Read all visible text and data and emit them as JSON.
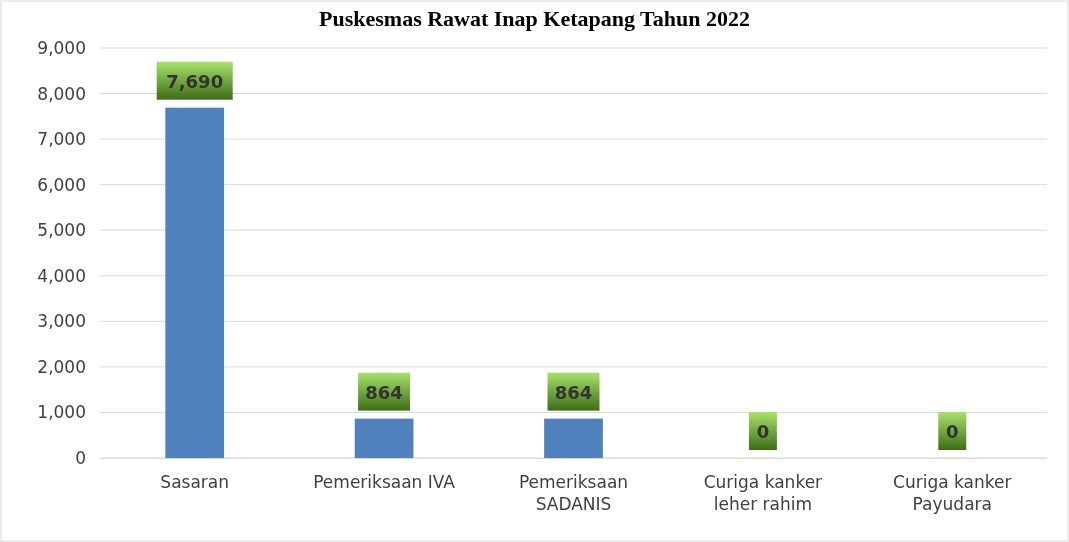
{
  "chart_data": {
    "type": "bar",
    "title": "Puskesmas Rawat Inap Ketapang Tahun 2022",
    "categories": [
      "Sasaran",
      "Pemeriksaan IVA",
      "Pemeriksaan SADANIS",
      "Curiga kanker leher rahim",
      "Curiga kanker Payudara"
    ],
    "values": [
      7690,
      864,
      864,
      0,
      0
    ],
    "color": "#4f81bd",
    "ylim": [
      0,
      9000
    ],
    "yticks": [
      {
        "value": 0,
        "label": "0"
      },
      {
        "value": 1000,
        "label": "1,000"
      },
      {
        "value": 2000,
        "label": "2,000"
      },
      {
        "value": 3000,
        "label": "3,000"
      },
      {
        "value": 4000,
        "label": "4,000"
      },
      {
        "value": 5000,
        "label": "5,000"
      },
      {
        "value": 6000,
        "label": "6,000"
      },
      {
        "value": 7000,
        "label": "7,000"
      },
      {
        "value": 8000,
        "label": "8,000"
      },
      {
        "value": 9000,
        "label": "9,000"
      }
    ],
    "grid": "y",
    "value_labels": [
      "7,690",
      "864",
      "864",
      "0",
      "0"
    ]
  }
}
